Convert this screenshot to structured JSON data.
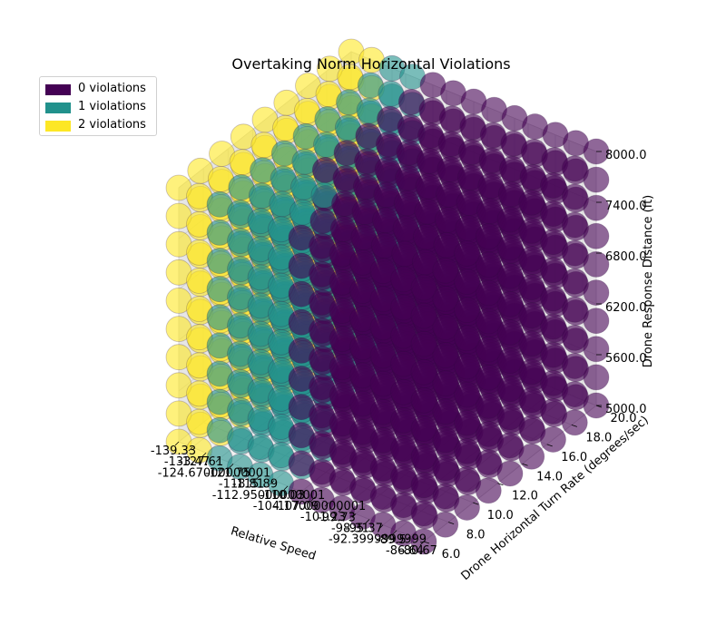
{
  "chart_data": {
    "type": "scatter3d",
    "title": "Overtaking Norm Horizontal Violations",
    "xlabel": "Relative Speed",
    "ylabel": "Drone Horizontal Turn Rate (degrees/sec)",
    "zlabel": "Drone Response Distance (ft)",
    "x_tick_labels": [
      "-139.33",
      "-133.47",
      "-127.61",
      "-124.67000000001",
      "-121.75",
      "-118.81",
      "-115.89",
      "-112.95000000001",
      "-110.03",
      "-107.09",
      "-104.17000000001",
      "-101.23",
      "-99.73",
      "-98.31",
      "-95.37",
      "-92.3999999999",
      "-89.5",
      "-86.64",
      "-80.67"
    ],
    "y_tick_labels": [
      "6.0",
      "8.0",
      "10.0",
      "12.0",
      "14.0",
      "16.0",
      "18.0",
      "20.0"
    ],
    "z_tick_labels": [
      "5000.0",
      "5600.0",
      "6200.0",
      "6800.0",
      "7400.0",
      "8000.0"
    ],
    "x_range": [
      -139.33,
      -80.67
    ],
    "y_range": [
      6.0,
      20.0
    ],
    "z_range": [
      5000.0,
      8000.0
    ],
    "grid": true,
    "legend_position": "upper-left",
    "legend": [
      {
        "label": "0 violations",
        "color": "#440154"
      },
      {
        "label": "1 violations",
        "color": "#21918c"
      },
      {
        "label": "2 violations",
        "color": "#fde725"
      }
    ],
    "point_alpha": 0.6,
    "violation_rule": "violations = 2 when relative speed <= -133, 1 when -133 < speed <= -122 or (speed <= -112 and turn rate <= 10), otherwise 0"
  }
}
